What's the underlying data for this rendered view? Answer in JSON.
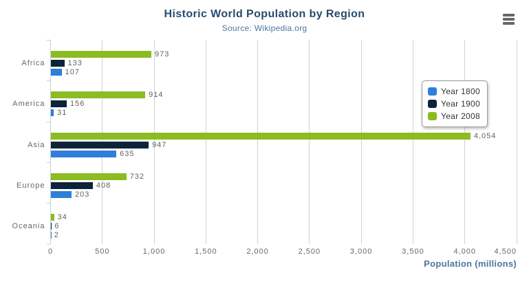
{
  "header": {
    "title": "Historic World Population by Region",
    "subtitle": "Source: Wikipedia.org"
  },
  "icons": {
    "context_menu": "hamburger-icon"
  },
  "chart_data": {
    "type": "bar",
    "orientation": "horizontal",
    "title": "Historic World Population by Region",
    "subtitle": "Source: Wikipedia.org",
    "categories": [
      "Africa",
      "America",
      "Asia",
      "Europe",
      "Oceania"
    ],
    "series": [
      {
        "name": "Year 1800",
        "color": "#2f7ed8",
        "values": [
          107,
          31,
          635,
          203,
          2
        ]
      },
      {
        "name": "Year 1900",
        "color": "#0d233a",
        "values": [
          133,
          156,
          947,
          408,
          6
        ]
      },
      {
        "name": "Year 2008",
        "color": "#8bbc21",
        "values": [
          973,
          914,
          4054,
          732,
          34
        ]
      }
    ],
    "series_draw_order_top_to_bottom": [
      "Year 2008",
      "Year 1900",
      "Year 1800"
    ],
    "xlabel": "Population (millions)",
    "ylabel": "",
    "xlim": [
      0,
      4500
    ],
    "xticks": {
      "values": [
        0,
        500,
        1000,
        1500,
        2000,
        2500,
        3000,
        3500,
        4000,
        4500
      ],
      "labels": [
        "0",
        "500",
        "1,000",
        "1,500",
        "2,000",
        "2,500",
        "3,000",
        "3,500",
        "4,000",
        "4,500"
      ]
    },
    "grid": true,
    "data_labels": true,
    "legend": {
      "position": "right-middle",
      "entries": [
        "Year 1800",
        "Year 1900",
        "Year 2008"
      ]
    }
  },
  "colors": {
    "title": "#274b6d",
    "subtitle": "#4d759e",
    "axis_title": "#4d759e",
    "tick_label": "#666666",
    "category_label": "#666666",
    "data_label": "#606060",
    "grid_line": "#d2d2d2",
    "category_axis_line": "#c0d0e0",
    "legend_border": "#999999",
    "legend_text": "#333333",
    "background": "#ffffff",
    "menu_icon": "#666666"
  }
}
